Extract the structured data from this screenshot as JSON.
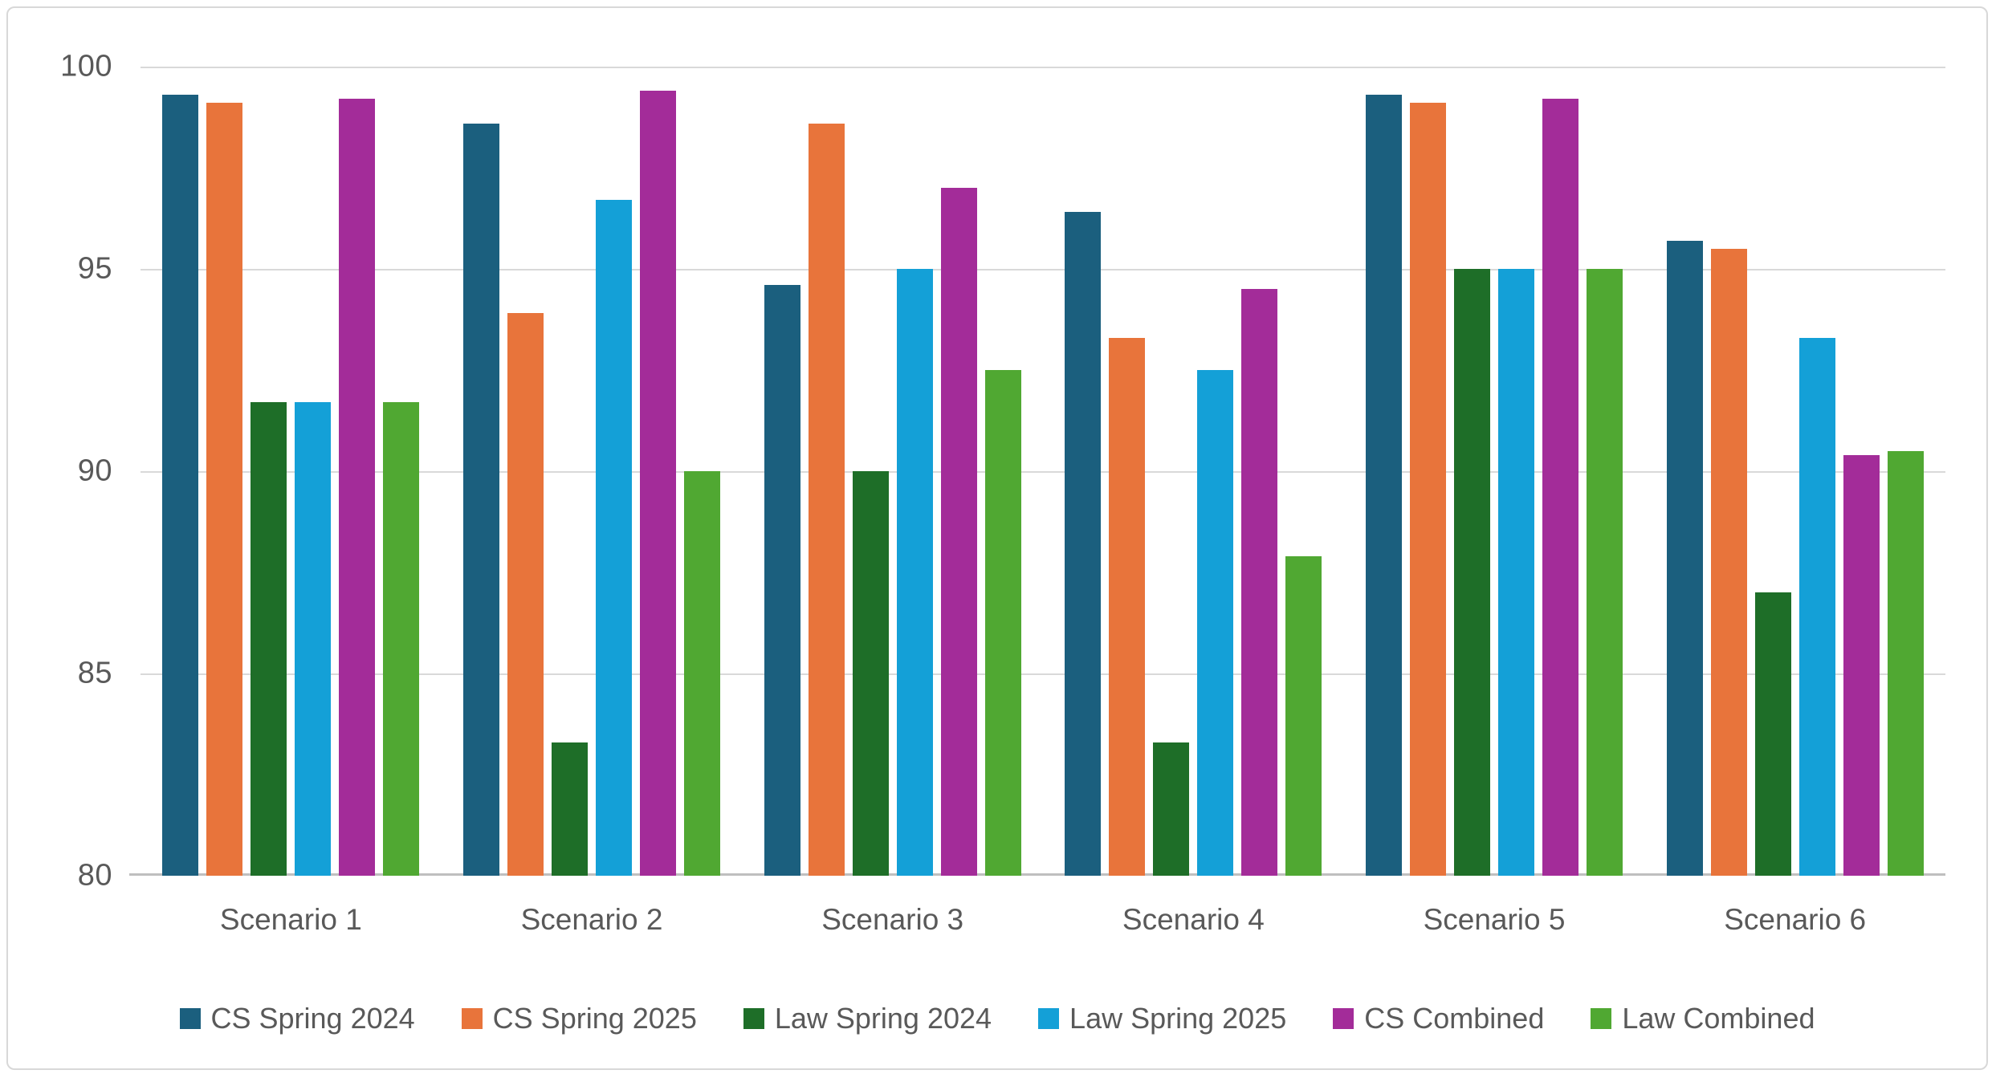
{
  "chart_data": {
    "type": "bar",
    "title": "",
    "categories": [
      "Scenario 1",
      "Scenario 2",
      "Scenario 3",
      "Scenario 4",
      "Scenario 5",
      "Scenario 6"
    ],
    "series": [
      {
        "name": "CS Spring 2024",
        "color": "#1B5F7E",
        "values": [
          99.3,
          98.6,
          94.6,
          96.4,
          99.3,
          95.7
        ]
      },
      {
        "name": "CS Spring 2025",
        "color": "#E8743B",
        "values": [
          99.1,
          93.9,
          98.6,
          93.3,
          99.1,
          95.5
        ]
      },
      {
        "name": "Law Spring 2024",
        "color": "#1E6E28",
        "values": [
          91.7,
          83.3,
          90.0,
          83.3,
          95.0,
          87.0
        ]
      },
      {
        "name": "Law Spring 2025",
        "color": "#14A0D7",
        "values": [
          91.7,
          96.7,
          95.0,
          92.5,
          95.0,
          93.3
        ]
      },
      {
        "name": "CS Combined",
        "color": "#A32C99",
        "values": [
          99.2,
          99.4,
          97.0,
          94.5,
          99.2,
          90.4
        ]
      },
      {
        "name": "Law Combined",
        "color": "#50A832",
        "values": [
          91.7,
          90.0,
          92.5,
          87.9,
          95.0,
          90.5
        ]
      }
    ],
    "y_axis": {
      "min": 80,
      "max": 100,
      "step": 5,
      "tick_labels": [
        "100",
        "95",
        "90",
        "85",
        "80"
      ]
    },
    "legend_position": "bottom",
    "grid": true
  },
  "style_colors": {
    "gridline": "#d9d9d9",
    "axis_line": "#bfbfbf",
    "text": "#595959",
    "frame_border": "#d8d8d8",
    "background": "#ffffff"
  }
}
